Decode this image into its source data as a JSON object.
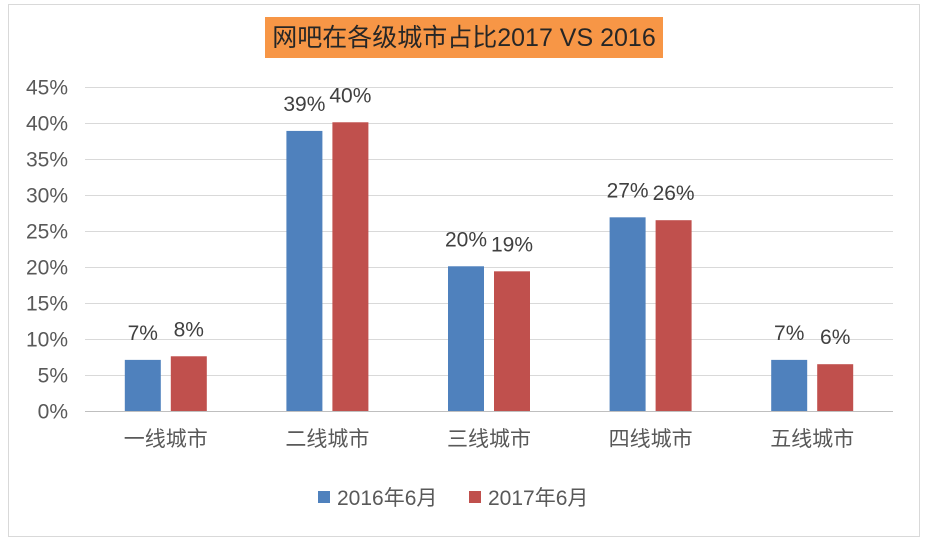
{
  "chart_data": {
    "type": "bar",
    "title": "网吧在各级城市占比2017 VS 2016",
    "title_bg": "#F79646",
    "categories": [
      "一线城市",
      "二线城市",
      "三线城市",
      "四线城市",
      "五线城市"
    ],
    "series": [
      {
        "name": "2016年6月",
        "color": "#4F81BD",
        "values": [
          7.1,
          38.9,
          20.1,
          26.9,
          7.1
        ],
        "labels": [
          "7%",
          "39%",
          "20%",
          "27%",
          "7%"
        ]
      },
      {
        "name": "2017年6月",
        "color": "#C0504D",
        "values": [
          7.6,
          40.1,
          19.4,
          26.5,
          6.5
        ],
        "labels": [
          "8%",
          "40%",
          "19%",
          "26%",
          "6%"
        ]
      }
    ],
    "ylim": [
      0,
      45
    ],
    "ytick_step": 5,
    "ytick_labels": [
      "0%",
      "5%",
      "10%",
      "15%",
      "20%",
      "25%",
      "30%",
      "35%",
      "40%",
      "45%"
    ],
    "grid": true,
    "legend": "bottom"
  }
}
